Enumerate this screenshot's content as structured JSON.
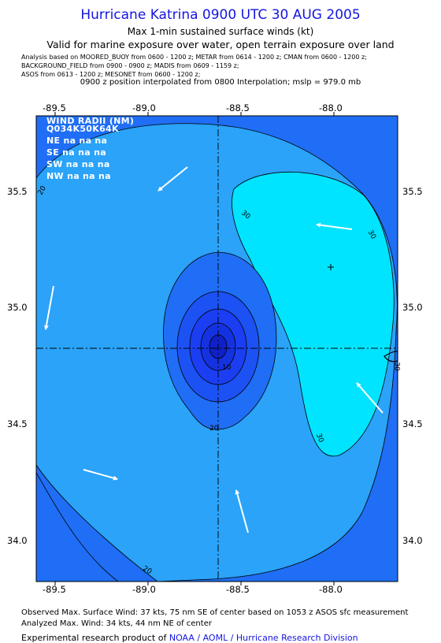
{
  "title": "Hurricane Katrina 0900 UTC 30 AUG 2005",
  "subtitle1": "Max 1-min sustained surface winds (kt)",
  "subtitle2": "Valid for marine exposure over water, open terrain exposure over land",
  "sources": [
    "Analysis based on  MOORED_BUOY from 0600 - 1200 z;  METAR from 0614 - 1200 z;  CMAN from 0600 - 1200 z;",
    "BACKGROUND_FIELD from 0900 - 0900 z;  MADIS from 0609 - 1159 z;",
    "ASOS from 0613 - 1200 z;  MESONET from 0600 - 1200 z;"
  ],
  "position_note": "0900 z position interpolated from 0800 Interpolation; mslp = 979.0 mb",
  "x_ticks": [
    "-89.5",
    "-89.0",
    "-88.5",
    "-88.0"
  ],
  "y_ticks": [
    "35.5",
    "35.0",
    "34.5",
    "34.0"
  ],
  "wind_radii": {
    "header": "WIND RADII (NM)",
    "columns": "Q034K50K64K",
    "rows": [
      "NE na na na",
      "SE na na na",
      "SW na na na",
      "NW na na na"
    ]
  },
  "contour_labels": [
    "30",
    "30",
    "30",
    "30",
    "20",
    "20",
    "20",
    "10"
  ],
  "footer": {
    "observed": "Observed Max. Surface Wind: 37 kts, 75 nm SE of center based on 1053 z ASOS sfc measurement",
    "analyzed": "Analyzed Max. Wind: 34 kts, 44 nm NE of center",
    "credit_prefix": "Experimental research product of ",
    "credit_link": "NOAA / AOML / Hurricane Research Division"
  },
  "colors": {
    "title": "#1515e0",
    "level_below_10": "#1c3ef2",
    "level_10_20": "#1f6ef5",
    "level_20_30": "#2aa3f9",
    "level_above_30": "#00e4ff"
  }
}
